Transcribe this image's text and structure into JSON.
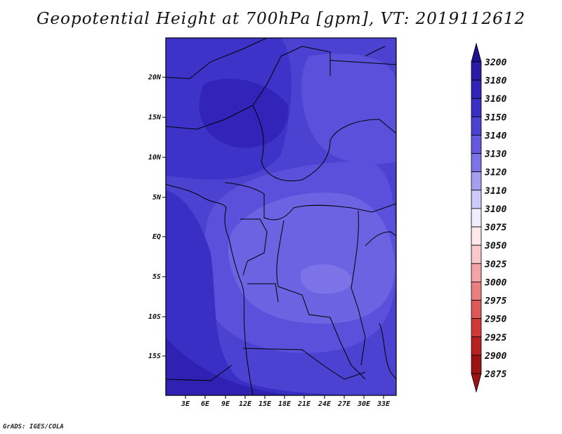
{
  "title": "Geopotential Height at 700hPa [gpm], VT: 2019112612",
  "credit": "GrADS: IGES/COLA",
  "map": {
    "lat_ticks": [
      "20N",
      "15N",
      "10N",
      "5N",
      "EQ",
      "5S",
      "10S",
      "15S"
    ],
    "lon_ticks": [
      "3E",
      "6E",
      "9E",
      "12E",
      "15E",
      "18E",
      "21E",
      "24E",
      "27E",
      "30E",
      "33E"
    ]
  },
  "colorbar": {
    "levels": [
      "3200",
      "3180",
      "3160",
      "3150",
      "3140",
      "3130",
      "3120",
      "3110",
      "3100",
      "3075",
      "3050",
      "3025",
      "3000",
      "2975",
      "2950",
      "2925",
      "2900",
      "2875"
    ],
    "colors": [
      "#1f108f",
      "#2a1ca6",
      "#3224b8",
      "#3a2fc4",
      "#4b42d2",
      "#6358de",
      "#7d73e8",
      "#a59ff2",
      "#cdc9f8",
      "#eeedfd",
      "#fde9e9",
      "#f9c9c9",
      "#f3a5a5",
      "#ea7f7f",
      "#df5858",
      "#d13838",
      "#b82121",
      "#9a1212"
    ]
  }
}
